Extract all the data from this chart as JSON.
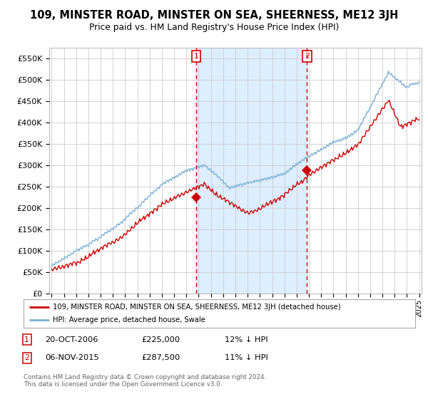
{
  "title": "109, MINSTER ROAD, MINSTER ON SEA, SHEERNESS, ME12 3JH",
  "subtitle": "Price paid vs. HM Land Registry's House Price Index (HPI)",
  "legend_line1": "109, MINSTER ROAD, MINSTER ON SEA, SHEERNESS, ME12 3JH (detached house)",
  "legend_line2": "HPI: Average price, detached house, Swale",
  "sale1_date": "20-OCT-2006",
  "sale1_price": "£225,000",
  "sale1_hpi": "12% ↓ HPI",
  "sale2_date": "06-NOV-2015",
  "sale2_price": "£287,500",
  "sale2_hpi": "11% ↓ HPI",
  "footnote": "Contains HM Land Registry data © Crown copyright and database right 2024.\nThis data is licensed under the Open Government Licence v3.0.",
  "red_color": "#cc0000",
  "blue_color": "#7aafd4",
  "shade_color": "#ddeeff",
  "vline_color": "#cc0000",
  "grid_color": "#cccccc",
  "background_color": "#ffffff",
  "ylim": [
    0,
    575000
  ],
  "yticks": [
    0,
    50000,
    100000,
    150000,
    200000,
    250000,
    300000,
    350000,
    400000,
    450000,
    500000,
    550000
  ],
  "sale1_x": 2006.8,
  "sale1_y": 225000,
  "sale2_x": 2015.85,
  "sale2_y": 287500,
  "xmin": 1994.8,
  "xmax": 2025.2
}
